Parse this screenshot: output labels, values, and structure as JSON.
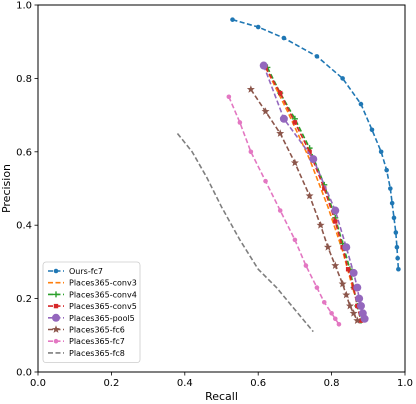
{
  "chart_data": {
    "type": "line",
    "title": "",
    "xlabel": "Recall",
    "ylabel": "Precision",
    "xlim": [
      0.0,
      1.0
    ],
    "ylim": [
      0.0,
      1.0
    ],
    "xticks": [
      "0.0",
      "0.2",
      "0.4",
      "0.6",
      "0.8",
      "1.0"
    ],
    "yticks": [
      "0.0",
      "0.2",
      "0.4",
      "0.6",
      "0.8",
      "1.0"
    ],
    "grid": false,
    "legend_position": "lower-left",
    "series": [
      {
        "name": "Ours-fc7",
        "color": "#1f77b4",
        "marker": "circle",
        "x": [
          0.53,
          0.6,
          0.67,
          0.76,
          0.83,
          0.88,
          0.91,
          0.935,
          0.95,
          0.96,
          0.965,
          0.97,
          0.975,
          0.978,
          0.98,
          0.982
        ],
        "y": [
          0.96,
          0.94,
          0.91,
          0.86,
          0.8,
          0.73,
          0.66,
          0.6,
          0.55,
          0.5,
          0.46,
          0.42,
          0.38,
          0.34,
          0.31,
          0.28
        ]
      },
      {
        "name": "Places365-conv3",
        "color": "#ff7f0e",
        "marker": "none",
        "x": [
          0.62,
          0.68,
          0.74,
          0.79,
          0.83,
          0.86,
          0.89
        ],
        "y": [
          0.83,
          0.71,
          0.58,
          0.45,
          0.33,
          0.22,
          0.14
        ]
      },
      {
        "name": "Places365-conv4",
        "color": "#2ca02c",
        "marker": "plus",
        "x": [
          0.625,
          0.66,
          0.7,
          0.74,
          0.78,
          0.81,
          0.83,
          0.85,
          0.86,
          0.87,
          0.88
        ],
        "y": [
          0.83,
          0.76,
          0.69,
          0.61,
          0.51,
          0.42,
          0.35,
          0.28,
          0.23,
          0.18,
          0.14
        ]
      },
      {
        "name": "Places365-conv5",
        "color": "#d62728",
        "marker": "square",
        "x": [
          0.62,
          0.66,
          0.7,
          0.74,
          0.78,
          0.81,
          0.83,
          0.845,
          0.86,
          0.87,
          0.88
        ],
        "y": [
          0.83,
          0.76,
          0.68,
          0.6,
          0.5,
          0.41,
          0.34,
          0.28,
          0.23,
          0.18,
          0.14
        ]
      },
      {
        "name": "Places365-pool5",
        "color": "#9467bd",
        "marker": "circle-large",
        "x": [
          0.615,
          0.67,
          0.75,
          0.81,
          0.84,
          0.86,
          0.87,
          0.875,
          0.88,
          0.885,
          0.89
        ],
        "y": [
          0.835,
          0.69,
          0.58,
          0.44,
          0.34,
          0.27,
          0.23,
          0.2,
          0.18,
          0.16,
          0.145
        ]
      },
      {
        "name": "Places365-fc6",
        "color": "#8c564b",
        "marker": "star",
        "x": [
          0.58,
          0.62,
          0.66,
          0.7,
          0.74,
          0.77,
          0.79,
          0.81,
          0.83,
          0.84,
          0.85,
          0.86,
          0.87
        ],
        "y": [
          0.77,
          0.71,
          0.65,
          0.57,
          0.48,
          0.4,
          0.34,
          0.29,
          0.24,
          0.21,
          0.18,
          0.16,
          0.14
        ]
      },
      {
        "name": "Places365-fc7",
        "color": "#e377c2",
        "marker": "circle",
        "x": [
          0.52,
          0.55,
          0.58,
          0.62,
          0.66,
          0.7,
          0.73,
          0.76,
          0.78,
          0.8,
          0.81,
          0.82
        ],
        "y": [
          0.75,
          0.68,
          0.6,
          0.52,
          0.44,
          0.36,
          0.29,
          0.23,
          0.19,
          0.16,
          0.145,
          0.13
        ]
      },
      {
        "name": "Places365-fc8",
        "color": "#7f7f7f",
        "marker": "none",
        "x": [
          0.38,
          0.42,
          0.46,
          0.5,
          0.55,
          0.6,
          0.65,
          0.7,
          0.75
        ],
        "y": [
          0.65,
          0.6,
          0.53,
          0.45,
          0.36,
          0.28,
          0.23,
          0.17,
          0.11
        ]
      }
    ]
  }
}
